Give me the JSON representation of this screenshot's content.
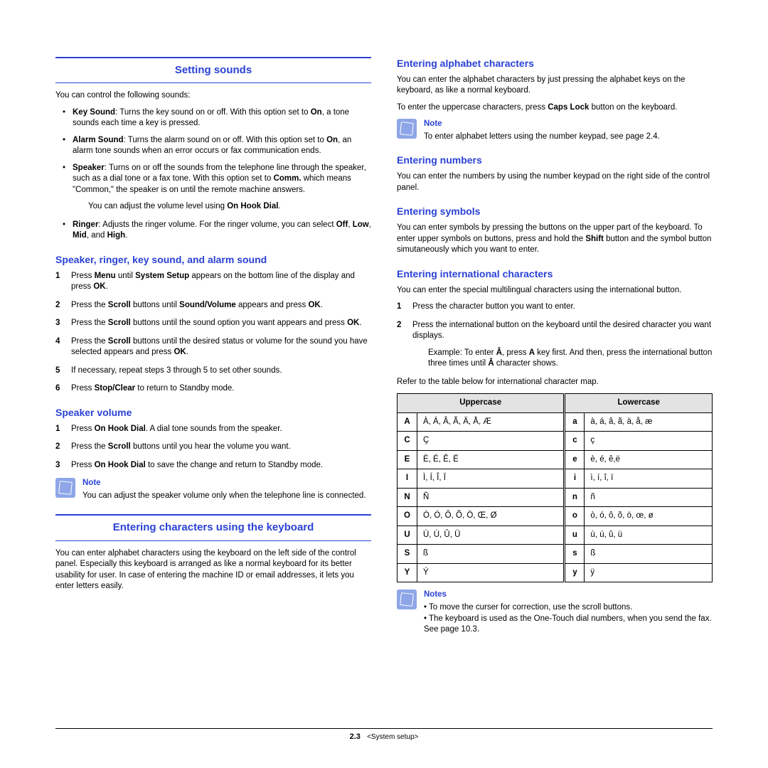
{
  "left": {
    "h1_sounds": "Setting sounds",
    "sounds_intro": "You can control the following sounds:",
    "bullets_sounds": [
      "Key Sound: Turns the key sound on or off. With this option set to On, a tone sounds each time a key is pressed.",
      "Alarm Sound: Turns the alarm sound on or off. With this option set to On, an alarm tone sounds when an error occurs or fax communication ends.",
      "Speaker: Turns on or off the sounds from the telephone line through the speaker, such as a dial tone or a fax tone. With this option set to Comm. which means \"Common,\" the speaker is on until the remote machine answers.",
      "Ringer: Adjusts the ringer volume. For the ringer volume, you can select Off, Low, Mid, and High."
    ],
    "bullet_speaker_extra": "You can adjust the volume level using On Hook Dial.",
    "h2_srka": "Speaker, ringer, key sound, and alarm sound",
    "steps_srka": [
      "Press Menu until System Setup appears on the bottom line of the display and press OK.",
      "Press the Scroll buttons until Sound/Volume appears and press OK.",
      "Press the Scroll buttons until the sound option you want appears and press OK.",
      "Press the Scroll buttons until the desired status or volume for the sound you have selected appears and press OK.",
      "If necessary, repeat steps 3 through 5 to set other sounds.",
      "Press Stop/Clear to return to Standby mode."
    ],
    "h2_spkvol": "Speaker volume",
    "steps_spkvol": [
      "Press On Hook Dial. A dial tone sounds from the speaker.",
      "Press the Scroll buttons until you hear the volume you want.",
      "Press On Hook Dial to save the change and return to Standby mode."
    ],
    "note1_title": "Note",
    "note1_body": "You can adjust the speaker volume only when the telephone line is connected.",
    "h1_chars": "Entering characters using the keyboard",
    "chars_intro": "You can enter alphabet characters using the keyboard on the left side of the control panel. Especially this keyboard is arranged as like a normal keyboard for its better usability for user. In case of entering the machine ID or email addresses, it lets you enter letters easily."
  },
  "right": {
    "h2_alpha": "Entering alphabet characters",
    "alpha_p1": "You can enter the alphabet characters by just pressing the alphabet keys on the keyboard, as like a normal keyboard.",
    "alpha_p2": "To enter the uppercase characters, press Caps Lock button on the keyboard.",
    "note2_title": "Note",
    "note2_body": "To enter alphabet letters using the number keypad, see page 2.4.",
    "h2_num": "Entering numbers",
    "num_p": "You can enter the numbers by using the number keypad on the right side of the control panel.",
    "h2_sym": "Entering symbols",
    "sym_p": "You can enter symbols by pressing the buttons on the upper part of the keyboard. To enter upper symbols on buttons, press and hold the Shift button and the symbol button simutaneously which you want to enter.",
    "h2_intl": "Entering international characters",
    "intl_p": "You can enter the special multilingual characters using the international button.",
    "steps_intl": [
      "Press the character button you want to enter.",
      "Press the international button on the keyboard until the desired character you want displays."
    ],
    "intl_example": "Example: To enter Â, press A key first. And then, press the international button three times until Â character shows.",
    "intl_ref": "Refer to the table below for international character map.",
    "th_upper": "Uppercase",
    "th_lower": "Lowercase",
    "rows": [
      {
        "ku": "A",
        "u": "À, Á, Â, Ã, Ä, Å, Æ",
        "kl": "a",
        "l": "à, á, â, ã, ä, å, æ"
      },
      {
        "ku": "C",
        "u": "Ç",
        "kl": "c",
        "l": "ç"
      },
      {
        "ku": "E",
        "u": "È, É, Ê, Ë",
        "kl": "e",
        "l": "è, é, ê,ë"
      },
      {
        "ku": "I",
        "u": "Ì, Í, Î, Ï",
        "kl": "i",
        "l": "ì, í, î, ï"
      },
      {
        "ku": "N",
        "u": "Ñ",
        "kl": "n",
        "l": "ñ"
      },
      {
        "ku": "O",
        "u": "Ò, Ó, Ô, Õ, Ö, Œ, Ø",
        "kl": "o",
        "l": "ò, ó, ô, õ, ö, œ, ø"
      },
      {
        "ku": "U",
        "u": "Ù, Ú, Û, Ü",
        "kl": "u",
        "l": "ù, ú, û, ü"
      },
      {
        "ku": "S",
        "u": "ß",
        "kl": "s",
        "l": "ß"
      },
      {
        "ku": "Y",
        "u": "Ý",
        "kl": "y",
        "l": "ÿ"
      }
    ],
    "note3_title": "Notes",
    "note3_b1": "To move the curser for correction, use the scroll buttons.",
    "note3_b2": "The keyboard is used as the One-Touch dial numbers, when you send the fax. See page 10.3."
  },
  "footer": {
    "page": "2.3",
    "section": "<System setup>"
  },
  "colors": {
    "heading_blue": "#2b42d6",
    "note_icon_bg": "#8ea6e8",
    "table_header_bg": "#e3e3e3",
    "text": "#000000",
    "background": "#ffffff"
  }
}
